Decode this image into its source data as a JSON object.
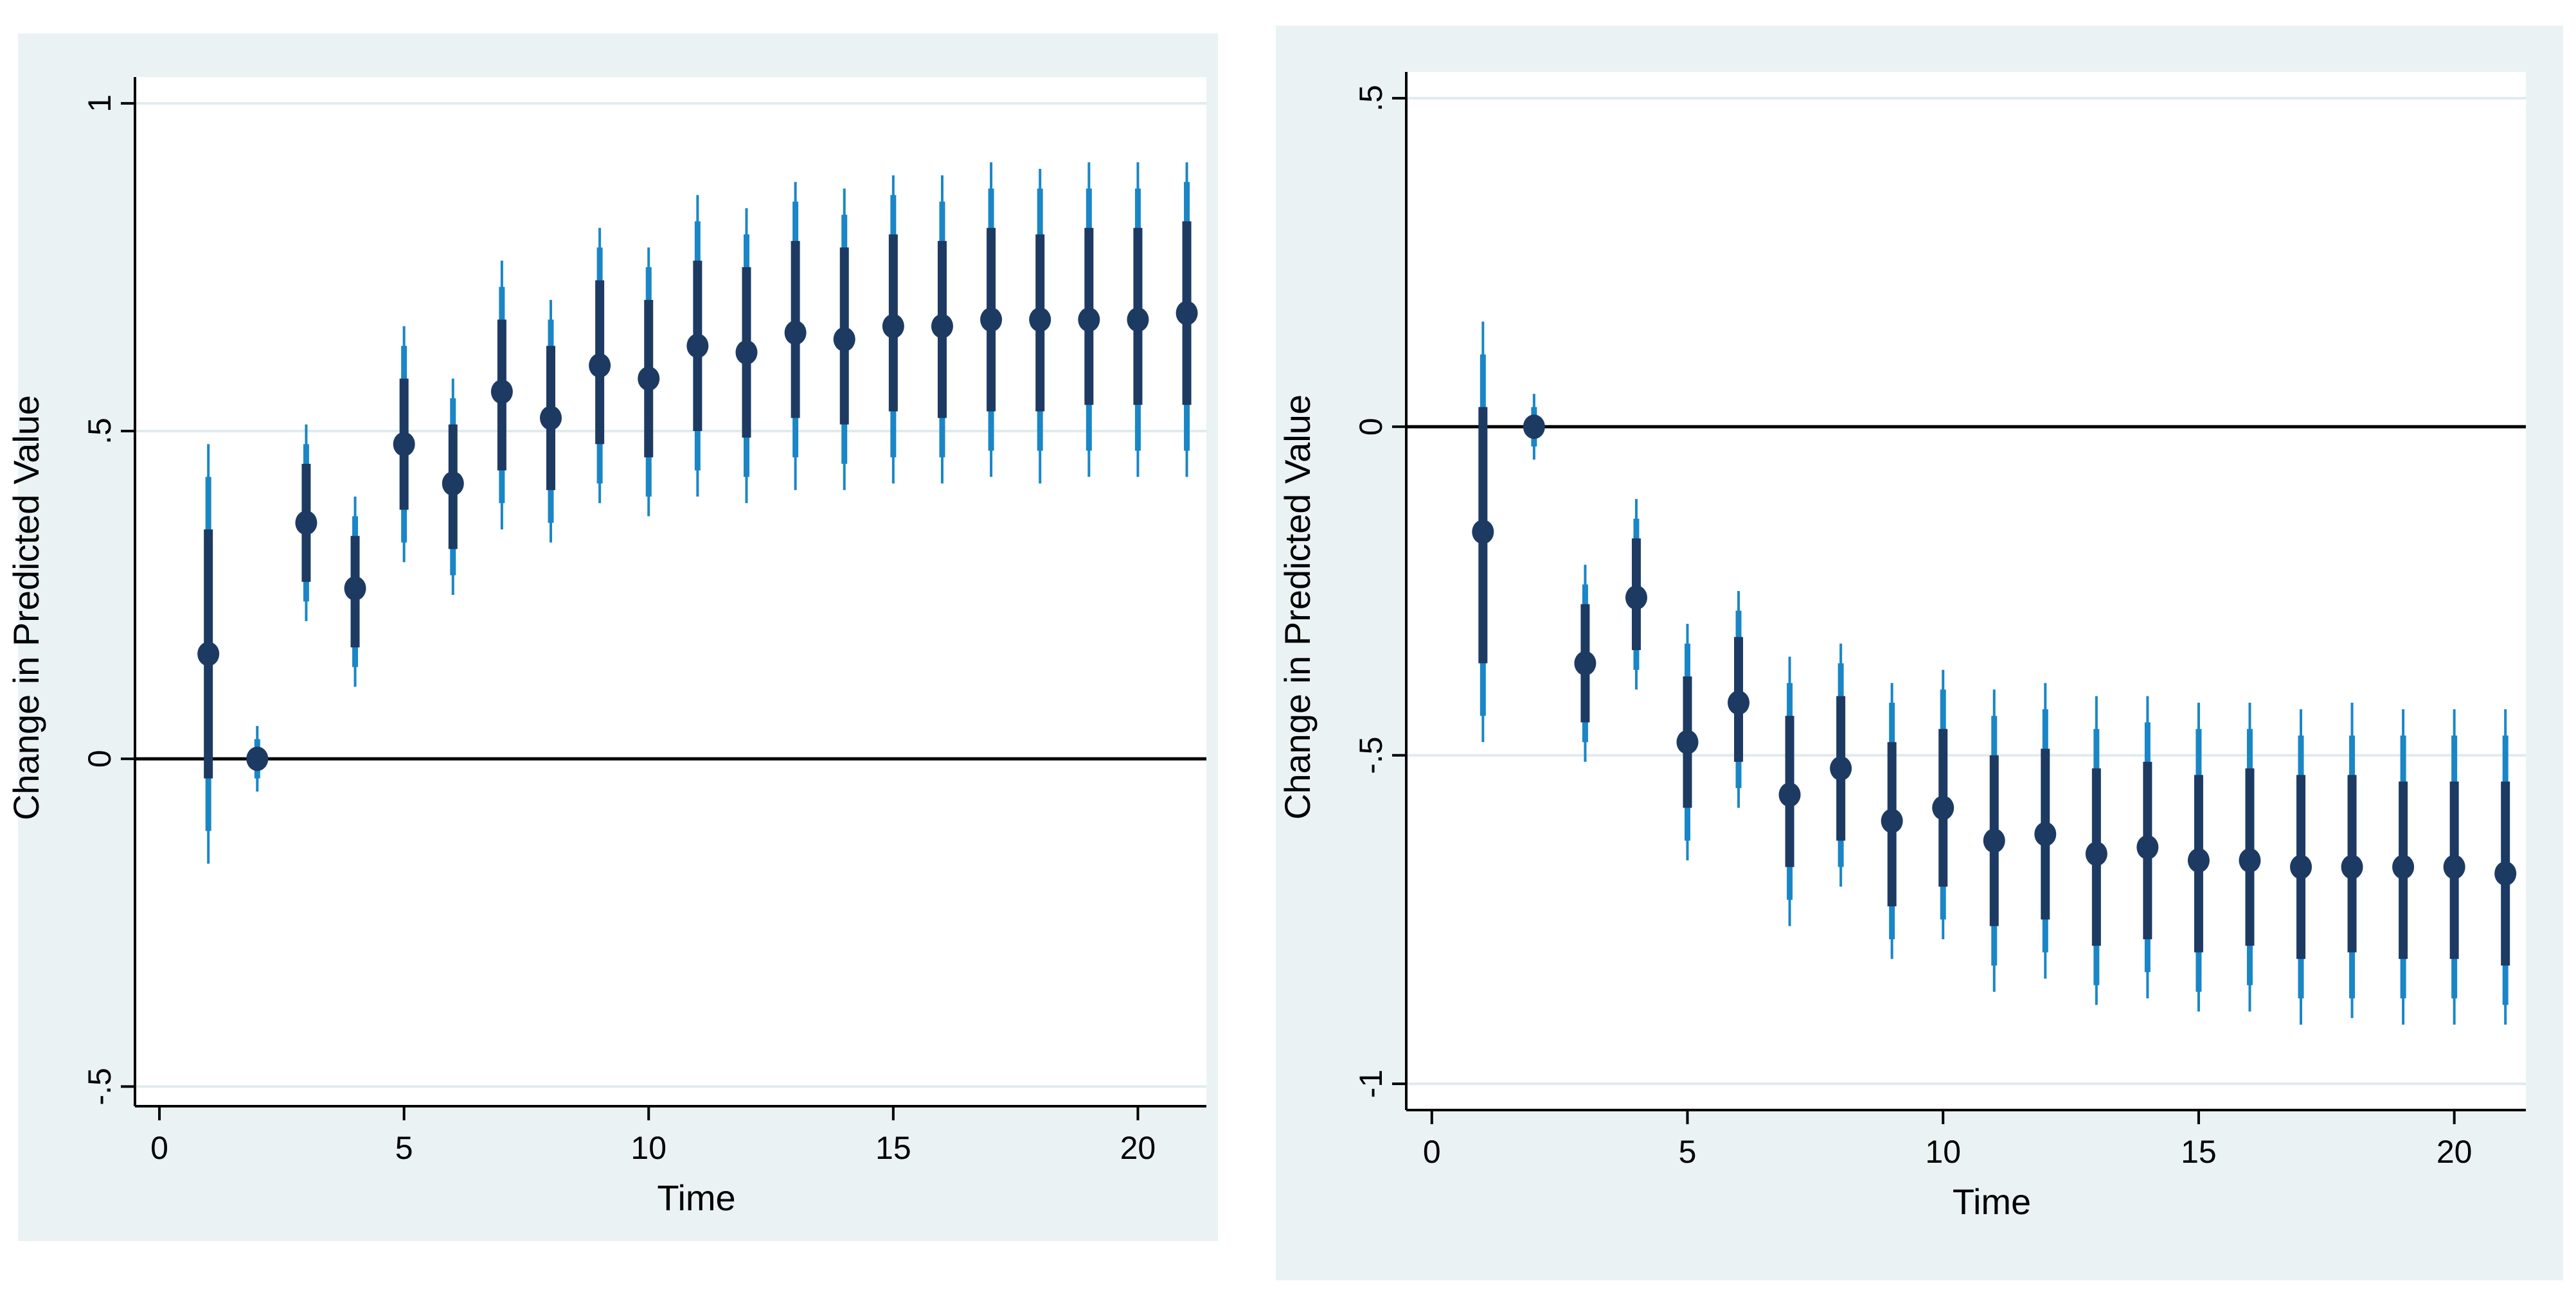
{
  "colors": {
    "background": "#eaf2f3",
    "plot_background": "#ffffff",
    "gridline": "#e1ebee",
    "zero_line": "#000000",
    "axis": "#000000",
    "outer_ci": "#1a86c6",
    "inner_ci": "#1d3a62",
    "point": "#1d3a62",
    "text": "#000000"
  },
  "chart_data": [
    {
      "type": "scatter",
      "title": "",
      "xlabel": "Time",
      "ylabel": "Change in Predicted Value",
      "xlim": [
        -0.5,
        21.4
      ],
      "ylim": [
        -0.53,
        1.04
      ],
      "x_ticks": [
        0,
        5,
        10,
        15,
        20
      ],
      "x_tick_labels": [
        "0",
        "5",
        "10",
        "15",
        "20"
      ],
      "y_ticks": [
        -0.5,
        0,
        0.5,
        1
      ],
      "y_tick_labels": [
        "-.5",
        "0",
        ".5",
        "1"
      ],
      "gridlines_y": [
        -0.5,
        0.5,
        1
      ],
      "reference_line_y": 0,
      "x": [
        1,
        2,
        3,
        4,
        5,
        6,
        7,
        8,
        9,
        10,
        11,
        12,
        13,
        14,
        15,
        16,
        17,
        18,
        19,
        20,
        21
      ],
      "estimate": [
        0.16,
        0.0,
        0.36,
        0.26,
        0.48,
        0.42,
        0.56,
        0.52,
        0.6,
        0.58,
        0.63,
        0.62,
        0.65,
        0.64,
        0.66,
        0.66,
        0.67,
        0.67,
        0.67,
        0.67,
        0.68
      ],
      "inner_low": [
        -0.03,
        -0.01,
        0.27,
        0.17,
        0.38,
        0.32,
        0.44,
        0.41,
        0.48,
        0.46,
        0.5,
        0.49,
        0.52,
        0.51,
        0.53,
        0.52,
        0.53,
        0.53,
        0.54,
        0.54,
        0.54
      ],
      "inner_high": [
        0.35,
        0.01,
        0.45,
        0.34,
        0.58,
        0.51,
        0.67,
        0.63,
        0.73,
        0.7,
        0.76,
        0.75,
        0.79,
        0.78,
        0.8,
        0.79,
        0.81,
        0.8,
        0.81,
        0.81,
        0.82
      ],
      "mid_low": [
        -0.11,
        -0.03,
        0.24,
        0.14,
        0.33,
        0.28,
        0.39,
        0.36,
        0.42,
        0.4,
        0.44,
        0.43,
        0.46,
        0.45,
        0.46,
        0.46,
        0.47,
        0.47,
        0.47,
        0.47,
        0.47
      ],
      "mid_high": [
        0.43,
        0.03,
        0.48,
        0.37,
        0.63,
        0.55,
        0.72,
        0.67,
        0.78,
        0.75,
        0.82,
        0.8,
        0.85,
        0.83,
        0.86,
        0.85,
        0.87,
        0.87,
        0.87,
        0.87,
        0.88
      ],
      "outer_low": [
        -0.16,
        -0.05,
        0.21,
        0.11,
        0.3,
        0.25,
        0.35,
        0.33,
        0.39,
        0.37,
        0.4,
        0.39,
        0.41,
        0.41,
        0.42,
        0.42,
        0.43,
        0.42,
        0.43,
        0.43,
        0.43
      ],
      "outer_high": [
        0.48,
        0.05,
        0.51,
        0.4,
        0.66,
        0.58,
        0.76,
        0.7,
        0.81,
        0.78,
        0.86,
        0.84,
        0.88,
        0.87,
        0.89,
        0.89,
        0.91,
        0.9,
        0.91,
        0.91,
        0.91
      ]
    },
    {
      "type": "scatter",
      "title": "",
      "xlabel": "Time",
      "ylabel": "Change in Predicted Value",
      "xlim": [
        -0.5,
        21.4
      ],
      "ylim": [
        -1.04,
        0.54
      ],
      "x_ticks": [
        0,
        5,
        10,
        15,
        20
      ],
      "x_tick_labels": [
        "0",
        "5",
        "10",
        "15",
        "20"
      ],
      "y_ticks": [
        -1,
        -0.5,
        0,
        0.5
      ],
      "y_tick_labels": [
        "-1",
        "-.5",
        "0",
        ".5"
      ],
      "gridlines_y": [
        -1,
        -0.5,
        0.5
      ],
      "reference_line_y": 0,
      "x": [
        1,
        2,
        3,
        4,
        5,
        6,
        7,
        8,
        9,
        10,
        11,
        12,
        13,
        14,
        15,
        16,
        17,
        18,
        19,
        20,
        21
      ],
      "estimate": [
        -0.16,
        0.0,
        -0.36,
        -0.26,
        -0.48,
        -0.42,
        -0.56,
        -0.52,
        -0.6,
        -0.58,
        -0.63,
        -0.62,
        -0.65,
        -0.64,
        -0.66,
        -0.66,
        -0.67,
        -0.67,
        -0.67,
        -0.67,
        -0.68
      ],
      "inner_low": [
        -0.36,
        -0.01,
        -0.45,
        -0.34,
        -0.58,
        -0.51,
        -0.67,
        -0.63,
        -0.73,
        -0.7,
        -0.76,
        -0.75,
        -0.79,
        -0.78,
        -0.8,
        -0.79,
        -0.81,
        -0.8,
        -0.81,
        -0.81,
        -0.82
      ],
      "inner_high": [
        0.03,
        0.01,
        -0.27,
        -0.17,
        -0.38,
        -0.32,
        -0.44,
        -0.41,
        -0.48,
        -0.46,
        -0.5,
        -0.49,
        -0.52,
        -0.51,
        -0.53,
        -0.52,
        -0.53,
        -0.53,
        -0.54,
        -0.54,
        -0.54
      ],
      "mid_low": [
        -0.44,
        -0.03,
        -0.48,
        -0.37,
        -0.63,
        -0.55,
        -0.72,
        -0.67,
        -0.78,
        -0.75,
        -0.82,
        -0.8,
        -0.85,
        -0.83,
        -0.86,
        -0.85,
        -0.87,
        -0.87,
        -0.87,
        -0.87,
        -0.88
      ],
      "mid_high": [
        0.11,
        0.03,
        -0.24,
        -0.14,
        -0.33,
        -0.28,
        -0.39,
        -0.36,
        -0.42,
        -0.4,
        -0.44,
        -0.43,
        -0.46,
        -0.45,
        -0.46,
        -0.46,
        -0.47,
        -0.47,
        -0.47,
        -0.47,
        -0.47
      ],
      "outer_low": [
        -0.48,
        -0.05,
        -0.51,
        -0.4,
        -0.66,
        -0.58,
        -0.76,
        -0.7,
        -0.81,
        -0.78,
        -0.86,
        -0.84,
        -0.88,
        -0.87,
        -0.89,
        -0.89,
        -0.91,
        -0.9,
        -0.91,
        -0.91,
        -0.91
      ],
      "outer_high": [
        0.16,
        0.05,
        -0.21,
        -0.11,
        -0.3,
        -0.25,
        -0.35,
        -0.33,
        -0.39,
        -0.37,
        -0.4,
        -0.39,
        -0.41,
        -0.41,
        -0.42,
        -0.42,
        -0.43,
        -0.42,
        -0.43,
        -0.43,
        -0.43
      ]
    }
  ]
}
